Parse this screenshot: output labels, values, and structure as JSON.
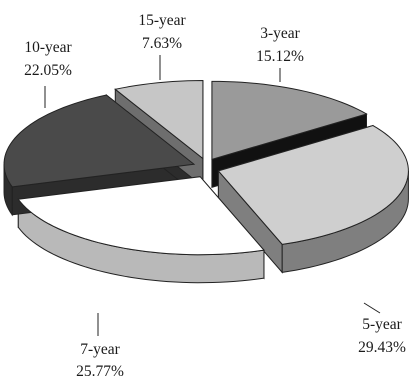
{
  "chart_data": {
    "type": "pie",
    "style": "3d-exploded",
    "title": "",
    "legend": "none",
    "slices": [
      {
        "category": "3-year",
        "percent": "15.12%",
        "value": 15.12,
        "color": "#9a9a9a",
        "side_color": "#111111"
      },
      {
        "category": "5-year",
        "percent": "29.43%",
        "value": 29.43,
        "color": "#cfcfcf",
        "side_color": "#7f7f7f"
      },
      {
        "category": "7-year",
        "percent": "25.77%",
        "value": 25.77,
        "color": "#ffffff",
        "side_color": "#b9b9b9"
      },
      {
        "category": "10-year",
        "percent": "22.05%",
        "value": 22.05,
        "color": "#4a4a4a",
        "side_color": "#2c2c2c"
      },
      {
        "category": "15-year",
        "percent": "7.63%",
        "value": 7.63,
        "color": "#c6c6c6",
        "side_color": "#6e6e6e"
      }
    ]
  }
}
